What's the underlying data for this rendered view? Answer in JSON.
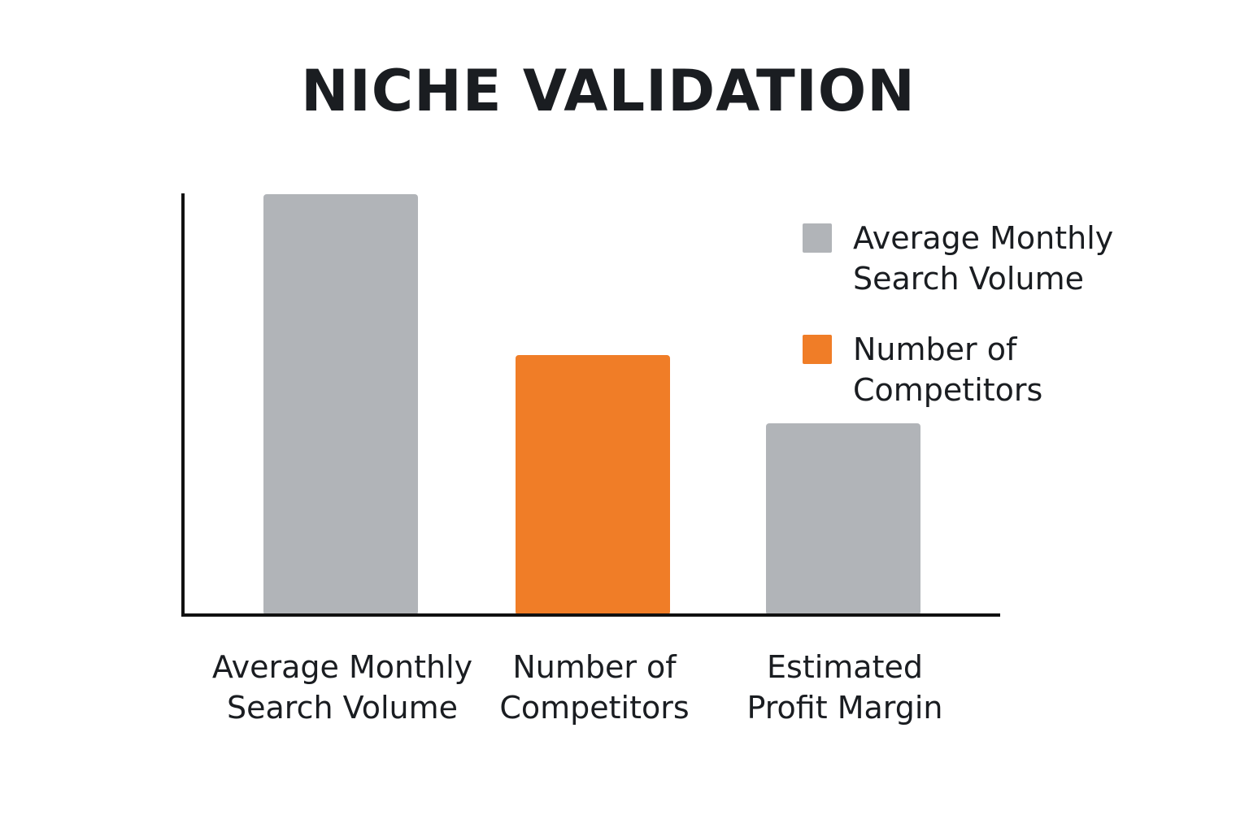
{
  "chart_data": {
    "type": "bar",
    "title": "NICHE VALIDATION",
    "categories": [
      [
        "Average Monthly",
        "Search Volume"
      ],
      [
        "Number of",
        "Competitors"
      ],
      [
        "Estimated",
        "Profit Margin"
      ]
    ],
    "values": [
      86,
      53,
      39
    ],
    "bar_colors": [
      "#b1b4b8",
      "#f07d27",
      "#b1b4b8"
    ],
    "ylim": [
      0,
      100
    ],
    "grid": false,
    "axis_ticks": false,
    "xlabel": "",
    "ylabel": "",
    "legend": {
      "placement": "top-right",
      "items": [
        {
          "label": [
            "Average Monthly",
            "Search Volume"
          ],
          "color": "#b1b4b8"
        },
        {
          "label": [
            "Number of",
            "Competitors"
          ],
          "color": "#f07d27"
        }
      ]
    }
  },
  "colors": {
    "axis": "#111111",
    "text": "#1a1d21",
    "background": "#ffffff"
  }
}
